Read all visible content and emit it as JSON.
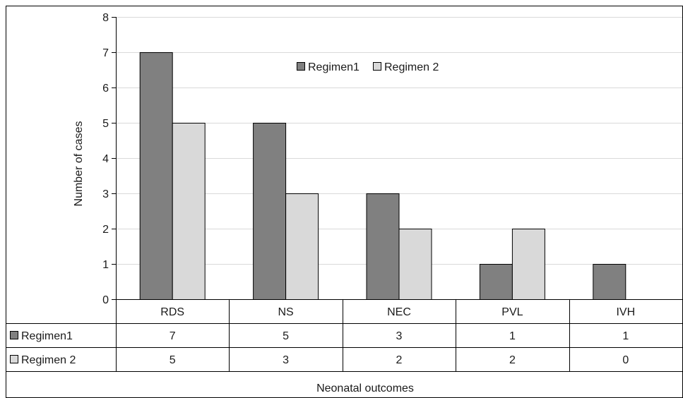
{
  "chart_data": {
    "type": "bar",
    "title": "",
    "xlabel": "Neonatal outcomes",
    "ylabel": "Number of cases",
    "ylim": [
      0,
      8
    ],
    "yticks": [
      0,
      1,
      2,
      3,
      4,
      5,
      6,
      7,
      8
    ],
    "categories": [
      "RDS",
      "NS",
      "NEC",
      "PVL",
      "IVH"
    ],
    "series": [
      {
        "name": "Regimen1",
        "values": [
          7,
          5,
          3,
          1,
          1
        ],
        "color": "#808080"
      },
      {
        "name": "Regimen 2",
        "values": [
          5,
          3,
          2,
          2,
          0
        ],
        "color": "#d9d9d9"
      }
    ],
    "legend_position": "top-center",
    "grid": true,
    "data_table": true
  },
  "colors": {
    "grid": "#d9d9d9",
    "axis": "#000000",
    "border": "#000000"
  }
}
